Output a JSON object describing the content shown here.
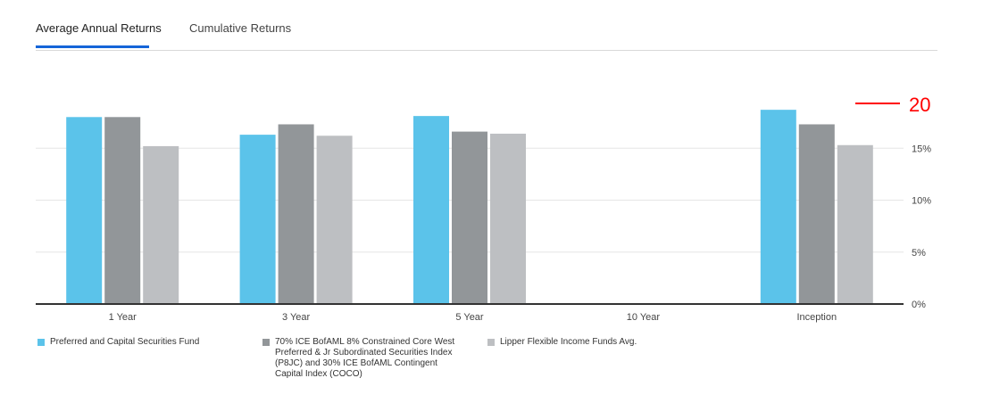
{
  "tabs": [
    {
      "label": "Average Annual Returns"
    },
    {
      "label": "Cumulative Returns"
    }
  ],
  "colors": {
    "series_1": "#5bc3ea",
    "series_2": "#929699",
    "series_3": "#bdbfc2",
    "tab_accent": "#1565d8",
    "annotation": "#ff0000"
  },
  "annotation": {
    "text": "20"
  },
  "chart_data": {
    "type": "bar",
    "categories": [
      "1 Year",
      "3 Year",
      "5 Year",
      "10 Year",
      "Inception"
    ],
    "series": [
      {
        "name": "Preferred and Capital Securities Fund",
        "values": [
          18.0,
          16.3,
          18.1,
          null,
          18.7
        ]
      },
      {
        "name": "70% ICE BofAML 8% Constrained Core West Preferred & Jr Subordinated Securities Index (P8JC) and 30% ICE BofAML Contingent Capital Index (COCO)",
        "values": [
          18.0,
          17.3,
          16.6,
          null,
          17.3
        ]
      },
      {
        "name": "Lipper Flexible Income Funds Avg.",
        "values": [
          15.2,
          16.2,
          16.4,
          null,
          15.3
        ]
      }
    ],
    "legend_lines": [
      [
        "Preferred and Capital Securities Fund"
      ],
      [
        "70% ICE BofAML 8% Constrained Core West",
        "Preferred & Jr Subordinated Securities Index",
        "(P8JC) and 30% ICE BofAML Contingent",
        "Capital Index (COCO)"
      ],
      [
        "Lipper Flexible Income Funds Avg."
      ]
    ],
    "yticks": [
      0,
      5,
      10,
      15
    ],
    "ytick_labels": [
      "0%",
      "5%",
      "10%",
      "15%"
    ],
    "ylim": [
      0,
      20
    ],
    "grid": true,
    "y_axis_side": "right",
    "title": "",
    "xlabel": "",
    "ylabel": ""
  }
}
